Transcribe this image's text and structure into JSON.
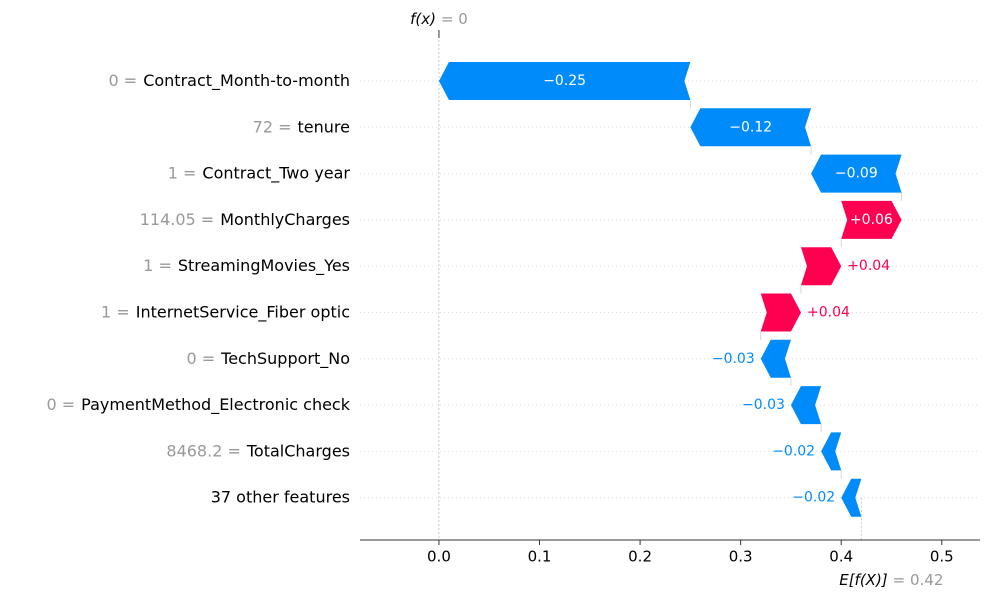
{
  "chart_data": {
    "type": "waterfall",
    "categories": [
      "Contract_Month-to-month",
      "tenure",
      "Contract_Two year",
      "MonthlyCharges",
      "StreamingMovies_Yes",
      "InternetService_Fiber optic",
      "TechSupport_No",
      "PaymentMethod_Electronic check",
      "TotalCharges",
      "37 other features"
    ],
    "feature_values": [
      "0 =",
      "72 =",
      "1 =",
      "114.05 =",
      "1 =",
      "1 =",
      "0 =",
      "0 =",
      "8468.2 =",
      null
    ],
    "values": [
      -0.25,
      -0.12,
      -0.09,
      0.06,
      0.04,
      0.04,
      -0.03,
      -0.03,
      -0.02,
      -0.02
    ],
    "value_labels": [
      "−0.25",
      "−0.12",
      "−0.09",
      "+0.06",
      "+0.04",
      "+0.04",
      "−0.03",
      "−0.03",
      "−0.02",
      "−0.02"
    ],
    "colors": {
      "positive": "#ff0051",
      "negative": "#008bfb"
    },
    "fx": {
      "label": "f(x)",
      "value": 0,
      "value_label": "= 0"
    },
    "base": {
      "label": "E[f(X)]",
      "value": 0.42,
      "value_label": "= 0.42"
    },
    "xlim": [
      -0.0785,
      0.538
    ],
    "xticks": [
      {
        "value": 0,
        "label": "0.0"
      },
      0.1,
      0.2,
      0.3,
      0.4,
      0.5
    ],
    "grid": true
  }
}
